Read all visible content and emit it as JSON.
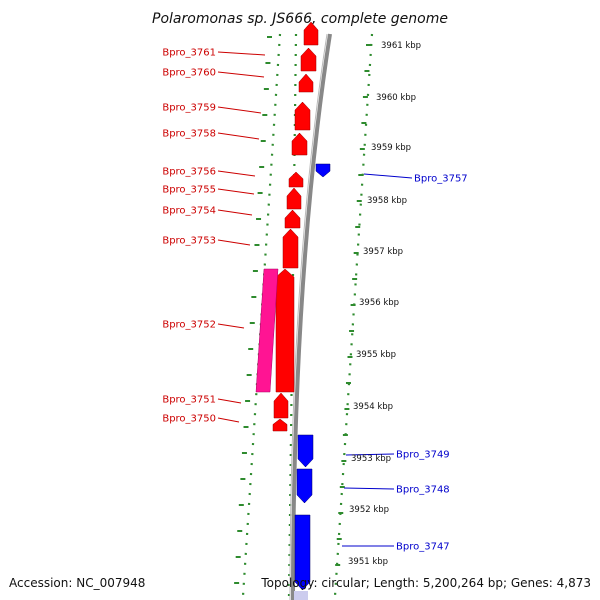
{
  "title": "Polaromonas sp. JS666, complete genome",
  "footer": {
    "accession": "Accession: NC_007948",
    "topology": "Topology: circular; Length: 5,200,264 bp; Genes: 4,873"
  },
  "colors": {
    "forward_gene": "#ff0000",
    "reverse_gene": "#0000ff",
    "feature_magenta": "#ff1493",
    "backbone": "#888888",
    "tick_dots": "#2e8b2e",
    "left_label": "#cc0000",
    "right_label": "#0000cc"
  },
  "scale_labels": [
    "3961 kbp",
    "3960 kbp",
    "3959 kbp",
    "3958 kbp",
    "3957 kbp",
    "3956 kbp",
    "3955 kbp",
    "3954 kbp",
    "3953 kbp",
    "3952 kbp",
    "3951 kbp"
  ],
  "genes_forward": [
    "Bpro_3761",
    "Bpro_3760",
    "Bpro_3759",
    "Bpro_3758",
    "Bpro_3756",
    "Bpro_3755",
    "Bpro_3754",
    "Bpro_3753",
    "Bpro_3752",
    "Bpro_3751",
    "Bpro_3750"
  ],
  "genes_reverse": [
    "Bpro_3757",
    "Bpro_3749",
    "Bpro_3748",
    "Bpro_3747"
  ]
}
